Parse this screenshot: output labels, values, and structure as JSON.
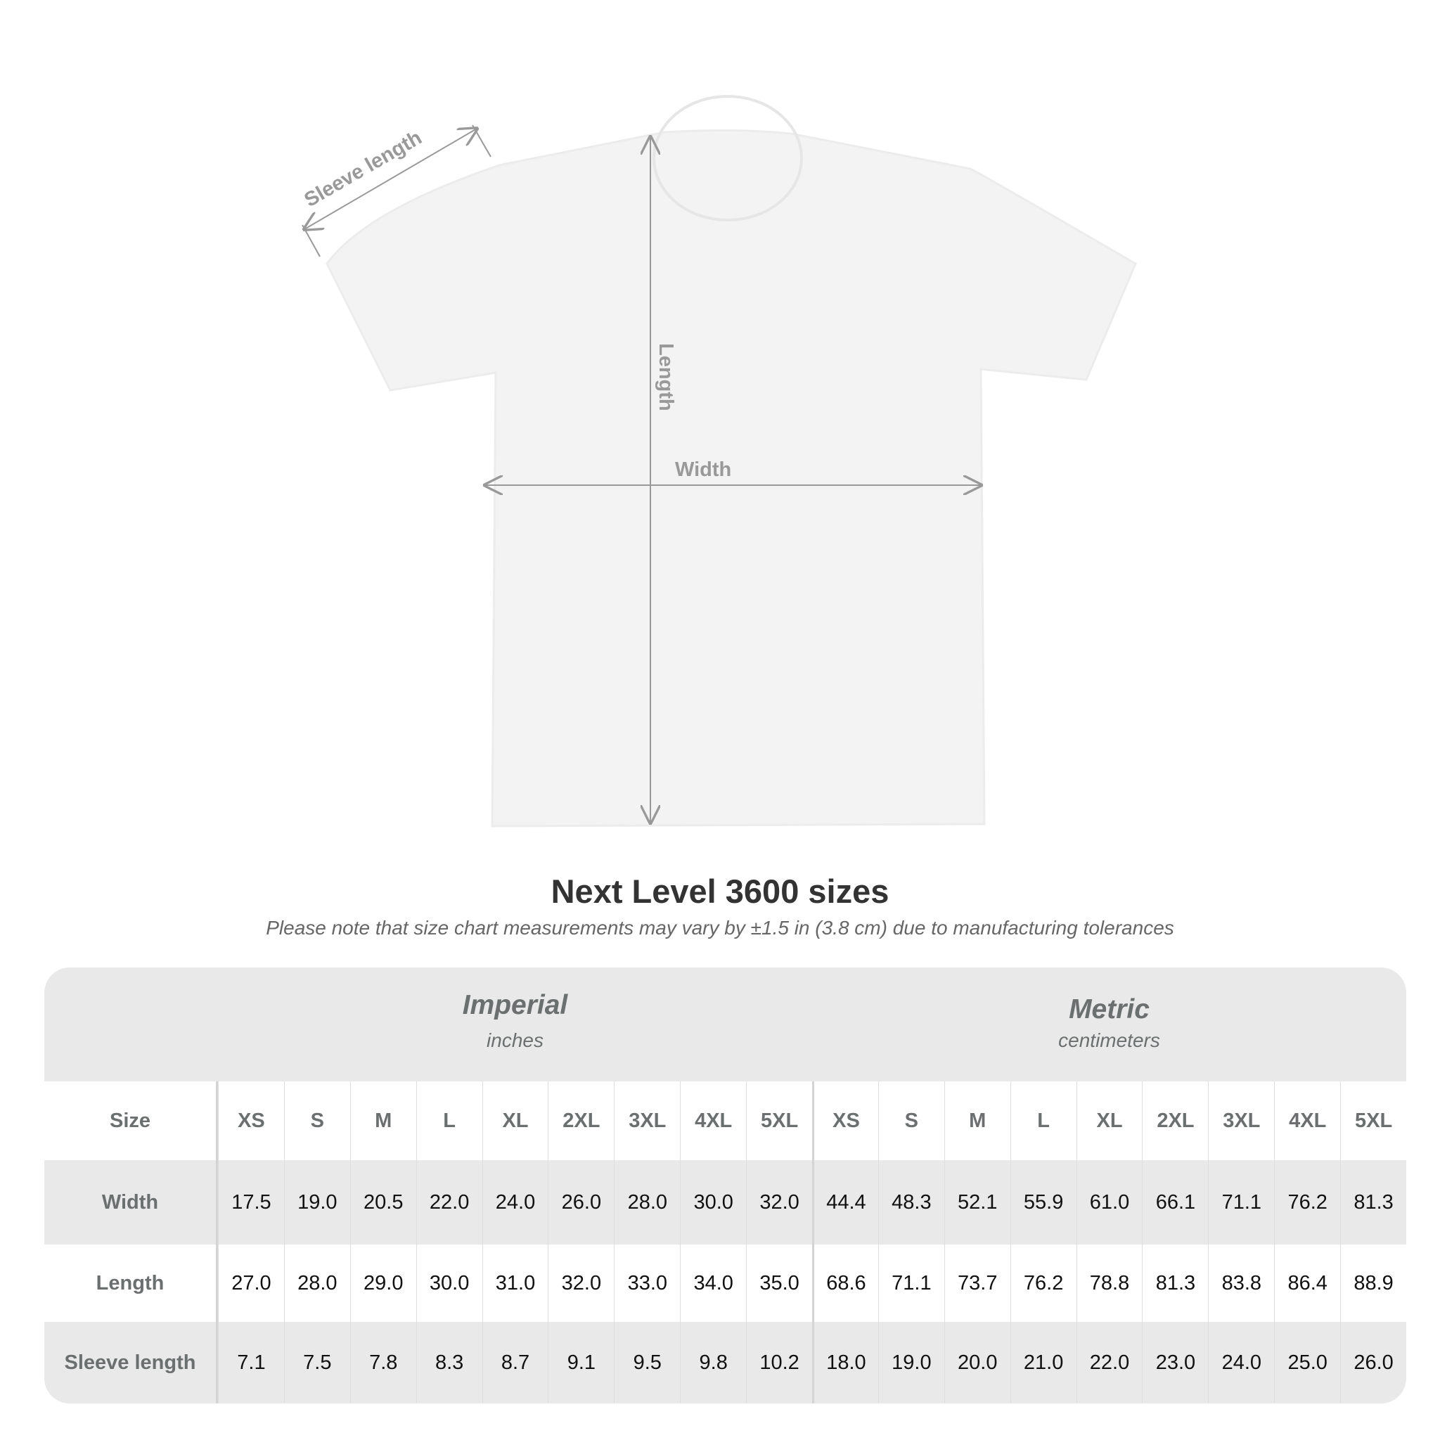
{
  "diagram": {
    "labels": {
      "sleeve": "Sleeve length",
      "length": "Length",
      "width": "Width"
    }
  },
  "title": "Next Level 3600 sizes",
  "subtitle": "Please note that size chart measurements may vary by ±1.5 in (3.8 cm) due to manufacturing tolerances",
  "table": {
    "imperial": {
      "name": "Imperial",
      "unit": "inches"
    },
    "metric": {
      "name": "Metric",
      "unit": "centimeters"
    },
    "size_label": "Size",
    "sizes": [
      "XS",
      "S",
      "M",
      "L",
      "XL",
      "2XL",
      "3XL",
      "4XL",
      "5XL"
    ],
    "rows": [
      {
        "label": "Width",
        "imperial": [
          "17.5",
          "19.0",
          "20.5",
          "22.0",
          "24.0",
          "26.0",
          "28.0",
          "30.0",
          "32.0"
        ],
        "metric": [
          "44.4",
          "48.3",
          "52.1",
          "55.9",
          "61.0",
          "66.1",
          "71.1",
          "76.2",
          "81.3"
        ]
      },
      {
        "label": "Length",
        "imperial": [
          "27.0",
          "28.0",
          "29.0",
          "30.0",
          "31.0",
          "32.0",
          "33.0",
          "34.0",
          "35.0"
        ],
        "metric": [
          "68.6",
          "71.1",
          "73.7",
          "76.2",
          "78.8",
          "81.3",
          "83.8",
          "86.4",
          "88.9"
        ]
      },
      {
        "label": "Sleeve length",
        "imperial": [
          "7.1",
          "7.5",
          "7.8",
          "8.3",
          "8.7",
          "9.1",
          "9.5",
          "9.8",
          "10.2"
        ],
        "metric": [
          "18.0",
          "19.0",
          "20.0",
          "21.0",
          "22.0",
          "23.0",
          "24.0",
          "25.0",
          "26.0"
        ]
      }
    ]
  }
}
